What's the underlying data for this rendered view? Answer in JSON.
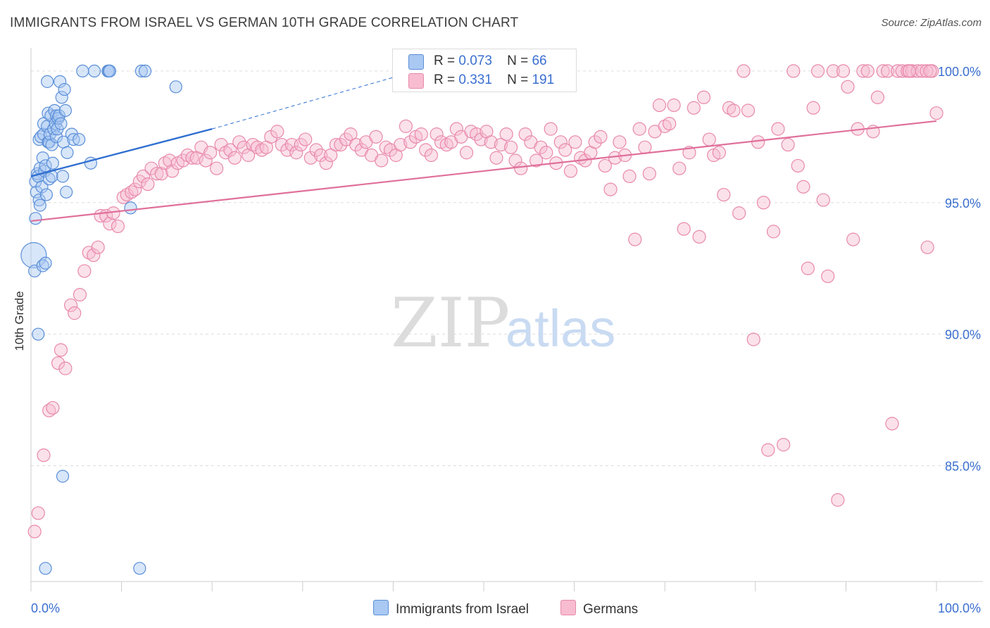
{
  "title": "IMMIGRANTS FROM ISRAEL VS GERMAN 10TH GRADE CORRELATION CHART",
  "source": "Source: ZipAtlas.com",
  "watermark": {
    "zip": "ZIP",
    "atlas": "atlas"
  },
  "legend_top": {
    "rows": [
      {
        "r_label": "R =",
        "r_value": "0.073",
        "n_label": "N =",
        "n_value": "66"
      },
      {
        "r_label": "R =",
        "r_value": "0.331",
        "n_label": "N =",
        "n_value": "191"
      }
    ]
  },
  "legend_bottom": {
    "items": [
      {
        "label": "Immigrants from Israel"
      },
      {
        "label": "Germans"
      }
    ]
  },
  "colors": {
    "israel_fill": "#a9c8f2",
    "israel_stroke": "#5b8fd8",
    "israel_line": "#2f6fd0",
    "germans_fill": "#f7bcd0",
    "germans_stroke": "#e889ab",
    "germans_line": "#e0709a",
    "tick_label": "#3a6fcf",
    "grid": "#dddddd"
  },
  "chart_data": {
    "type": "scatter",
    "title": "IMMIGRANTS FROM ISRAEL VS GERMAN 10TH GRADE CORRELATION CHART",
    "xlabel": "",
    "ylabel": "10th Grade",
    "xlim": [
      0,
      100
    ],
    "ylim": [
      80.6,
      100.8
    ],
    "x_tick_labels": [
      "0.0%",
      "100.0%"
    ],
    "y_ticks": [
      85,
      90,
      95,
      100
    ],
    "y_tick_labels": [
      "85.0%",
      "90.0%",
      "95.0%",
      "100.0%"
    ],
    "grid": true,
    "legend_position": "top-center",
    "series": [
      {
        "name": "Immigrants from Israel",
        "R": 0.073,
        "N": 66,
        "trend": {
          "x": [
            0,
            20
          ],
          "y": [
            96.0,
            97.8
          ],
          "dashed_extension_to": [
            42.5,
            100.0
          ]
        },
        "points": [
          [
            0.3,
            93.0
          ],
          [
            0.4,
            92.4
          ],
          [
            0.5,
            94.4
          ],
          [
            0.5,
            95.8
          ],
          [
            0.6,
            95.4
          ],
          [
            0.7,
            96.1
          ],
          [
            0.8,
            96.0
          ],
          [
            0.8,
            90.0
          ],
          [
            0.9,
            95.1
          ],
          [
            0.9,
            97.4
          ],
          [
            1.0,
            94.9
          ],
          [
            1.0,
            96.3
          ],
          [
            1.1,
            97.5
          ],
          [
            1.2,
            95.6
          ],
          [
            1.3,
            96.7
          ],
          [
            1.3,
            92.6
          ],
          [
            1.4,
            97.6
          ],
          [
            1.4,
            98.0
          ],
          [
            1.5,
            96.2
          ],
          [
            1.6,
            96.4
          ],
          [
            1.6,
            92.7
          ],
          [
            1.6,
            81.1
          ],
          [
            1.7,
            95.3
          ],
          [
            1.8,
            97.9
          ],
          [
            1.8,
            99.6
          ],
          [
            1.9,
            97.3
          ],
          [
            1.9,
            98.4
          ],
          [
            2.0,
            97.3
          ],
          [
            2.0,
            95.9
          ],
          [
            2.1,
            97.6
          ],
          [
            2.2,
            98.3
          ],
          [
            2.3,
            97.2
          ],
          [
            2.3,
            96.0
          ],
          [
            2.4,
            96.5
          ],
          [
            2.5,
            97.8
          ],
          [
            2.6,
            98.5
          ],
          [
            2.7,
            98.0
          ],
          [
            2.8,
            97.5
          ],
          [
            2.8,
            98.3
          ],
          [
            2.9,
            97.8
          ],
          [
            3.0,
            98.2
          ],
          [
            3.1,
            98.3
          ],
          [
            3.2,
            99.6
          ],
          [
            3.3,
            98.0
          ],
          [
            3.4,
            99.0
          ],
          [
            3.5,
            96.0
          ],
          [
            3.5,
            84.6
          ],
          [
            3.6,
            97.3
          ],
          [
            3.7,
            99.3
          ],
          [
            3.8,
            98.5
          ],
          [
            3.9,
            95.4
          ],
          [
            4.0,
            96.9
          ],
          [
            4.5,
            97.6
          ],
          [
            4.7,
            97.4
          ],
          [
            5.3,
            97.4
          ],
          [
            5.7,
            100.0
          ],
          [
            6.6,
            96.5
          ],
          [
            7.0,
            100.0
          ],
          [
            8.5,
            100.0
          ],
          [
            8.6,
            100.0
          ],
          [
            8.7,
            100.0
          ],
          [
            11.0,
            94.8
          ],
          [
            12.0,
            81.1
          ],
          [
            12.2,
            100.0
          ],
          [
            12.6,
            100.0
          ],
          [
            16.0,
            99.4
          ]
        ]
      },
      {
        "name": "Germans",
        "R": 0.331,
        "N": 191,
        "trend": {
          "x": [
            0,
            100
          ],
          "y": [
            94.3,
            98.1
          ]
        },
        "points": [
          [
            0.4,
            82.5
          ],
          [
            0.8,
            83.2
          ],
          [
            1.4,
            85.4
          ],
          [
            2.0,
            87.1
          ],
          [
            2.4,
            87.2
          ],
          [
            3.0,
            88.9
          ],
          [
            3.3,
            89.4
          ],
          [
            3.8,
            88.7
          ],
          [
            4.4,
            91.1
          ],
          [
            4.8,
            90.8
          ],
          [
            5.4,
            91.5
          ],
          [
            5.9,
            92.4
          ],
          [
            6.4,
            93.1
          ],
          [
            6.9,
            93.0
          ],
          [
            7.4,
            93.3
          ],
          [
            7.7,
            94.5
          ],
          [
            8.3,
            94.5
          ],
          [
            8.7,
            94.2
          ],
          [
            9.1,
            94.6
          ],
          [
            9.6,
            94.1
          ],
          [
            10.2,
            95.2
          ],
          [
            10.6,
            95.3
          ],
          [
            11.1,
            95.4
          ],
          [
            11.5,
            95.5
          ],
          [
            12.0,
            95.8
          ],
          [
            12.4,
            96.0
          ],
          [
            12.9,
            95.7
          ],
          [
            13.3,
            96.3
          ],
          [
            13.9,
            96.1
          ],
          [
            14.4,
            96.1
          ],
          [
            14.8,
            96.5
          ],
          [
            15.3,
            96.6
          ],
          [
            15.6,
            96.2
          ],
          [
            16.2,
            96.5
          ],
          [
            16.8,
            96.6
          ],
          [
            17.3,
            96.8
          ],
          [
            17.8,
            96.7
          ],
          [
            18.3,
            96.7
          ],
          [
            18.8,
            97.1
          ],
          [
            19.3,
            96.6
          ],
          [
            19.8,
            96.9
          ],
          [
            20.5,
            96.3
          ],
          [
            21.0,
            97.2
          ],
          [
            21.5,
            96.9
          ],
          [
            22.0,
            97.0
          ],
          [
            22.5,
            96.7
          ],
          [
            23.0,
            97.3
          ],
          [
            23.5,
            97.1
          ],
          [
            24.0,
            96.8
          ],
          [
            24.5,
            97.2
          ],
          [
            25.0,
            97.1
          ],
          [
            25.5,
            97.0
          ],
          [
            26.0,
            97.1
          ],
          [
            26.5,
            97.5
          ],
          [
            27.2,
            97.7
          ],
          [
            27.7,
            97.2
          ],
          [
            28.3,
            97.0
          ],
          [
            28.8,
            97.2
          ],
          [
            29.3,
            96.9
          ],
          [
            29.8,
            97.2
          ],
          [
            30.3,
            97.4
          ],
          [
            30.9,
            96.7
          ],
          [
            31.5,
            97.0
          ],
          [
            32.0,
            96.8
          ],
          [
            32.6,
            96.5
          ],
          [
            33.1,
            96.8
          ],
          [
            33.7,
            97.2
          ],
          [
            34.2,
            97.2
          ],
          [
            34.8,
            97.4
          ],
          [
            35.3,
            97.6
          ],
          [
            35.9,
            97.2
          ],
          [
            36.5,
            97.0
          ],
          [
            37.0,
            97.3
          ],
          [
            37.6,
            96.8
          ],
          [
            38.1,
            97.5
          ],
          [
            38.7,
            96.6
          ],
          [
            39.2,
            97.1
          ],
          [
            39.7,
            97.0
          ],
          [
            40.3,
            96.8
          ],
          [
            40.8,
            97.2
          ],
          [
            41.4,
            97.9
          ],
          [
            41.9,
            97.3
          ],
          [
            42.5,
            97.5
          ],
          [
            43.1,
            97.6
          ],
          [
            43.6,
            97.0
          ],
          [
            44.2,
            96.8
          ],
          [
            44.8,
            97.6
          ],
          [
            45.3,
            97.3
          ],
          [
            45.9,
            97.2
          ],
          [
            46.4,
            97.3
          ],
          [
            47.0,
            97.8
          ],
          [
            47.5,
            97.5
          ],
          [
            48.1,
            96.9
          ],
          [
            48.6,
            97.7
          ],
          [
            49.2,
            97.6
          ],
          [
            49.7,
            97.4
          ],
          [
            50.3,
            97.7
          ],
          [
            50.8,
            97.3
          ],
          [
            51.4,
            96.7
          ],
          [
            51.9,
            97.2
          ],
          [
            52.5,
            97.6
          ],
          [
            53.0,
            97.1
          ],
          [
            53.5,
            96.6
          ],
          [
            54.1,
            96.3
          ],
          [
            54.6,
            97.6
          ],
          [
            55.2,
            97.3
          ],
          [
            55.8,
            96.6
          ],
          [
            56.3,
            97.1
          ],
          [
            56.9,
            96.9
          ],
          [
            57.4,
            97.8
          ],
          [
            58.0,
            96.5
          ],
          [
            58.5,
            97.3
          ],
          [
            59.0,
            97.0
          ],
          [
            59.6,
            96.2
          ],
          [
            60.1,
            97.3
          ],
          [
            60.7,
            96.7
          ],
          [
            61.2,
            96.6
          ],
          [
            61.8,
            96.9
          ],
          [
            62.3,
            97.3
          ],
          [
            62.9,
            97.5
          ],
          [
            63.4,
            96.4
          ],
          [
            64.0,
            95.5
          ],
          [
            64.5,
            96.7
          ],
          [
            65.0,
            97.3
          ],
          [
            65.6,
            96.8
          ],
          [
            66.1,
            96.0
          ],
          [
            66.7,
            93.6
          ],
          [
            67.2,
            97.8
          ],
          [
            67.8,
            97.1
          ],
          [
            68.3,
            96.1
          ],
          [
            68.9,
            97.7
          ],
          [
            69.4,
            98.7
          ],
          [
            70.0,
            97.9
          ],
          [
            70.5,
            98.0
          ],
          [
            71.0,
            98.7
          ],
          [
            71.6,
            96.3
          ],
          [
            72.1,
            94.0
          ],
          [
            72.7,
            96.9
          ],
          [
            73.2,
            98.6
          ],
          [
            73.8,
            93.7
          ],
          [
            74.3,
            99.0
          ],
          [
            74.9,
            97.4
          ],
          [
            75.4,
            96.8
          ],
          [
            76.0,
            96.9
          ],
          [
            76.5,
            95.3
          ],
          [
            77.1,
            98.6
          ],
          [
            77.6,
            98.5
          ],
          [
            78.2,
            94.6
          ],
          [
            78.7,
            100.0
          ],
          [
            79.2,
            98.5
          ],
          [
            79.8,
            89.8
          ],
          [
            80.3,
            97.3
          ],
          [
            80.9,
            95.0
          ],
          [
            81.4,
            85.6
          ],
          [
            82.0,
            93.9
          ],
          [
            82.5,
            97.8
          ],
          [
            83.1,
            85.8
          ],
          [
            83.6,
            97.2
          ],
          [
            84.2,
            100.0
          ],
          [
            84.7,
            96.4
          ],
          [
            85.3,
            95.6
          ],
          [
            85.8,
            92.5
          ],
          [
            86.4,
            98.6
          ],
          [
            86.9,
            100.0
          ],
          [
            87.5,
            95.1
          ],
          [
            88.0,
            92.2
          ],
          [
            88.6,
            100.0
          ],
          [
            89.1,
            83.7
          ],
          [
            89.7,
            100.0
          ],
          [
            90.2,
            99.4
          ],
          [
            90.8,
            93.6
          ],
          [
            91.3,
            97.8
          ],
          [
            91.9,
            100.0
          ],
          [
            92.4,
            100.0
          ],
          [
            93.0,
            97.7
          ],
          [
            93.5,
            99.0
          ],
          [
            94.1,
            100.0
          ],
          [
            94.6,
            100.0
          ],
          [
            95.1,
            86.6
          ],
          [
            95.7,
            100.0
          ],
          [
            96.2,
            100.0
          ],
          [
            96.8,
            100.0
          ],
          [
            97.3,
            100.0
          ],
          [
            97.9,
            100.0
          ],
          [
            98.4,
            100.0
          ],
          [
            99.0,
            93.3
          ],
          [
            99.5,
            100.0
          ],
          [
            100.0,
            98.4
          ],
          [
            97.0,
            100.0
          ],
          [
            98.9,
            100.0
          ],
          [
            99.3,
            100.0
          ]
        ]
      }
    ]
  }
}
